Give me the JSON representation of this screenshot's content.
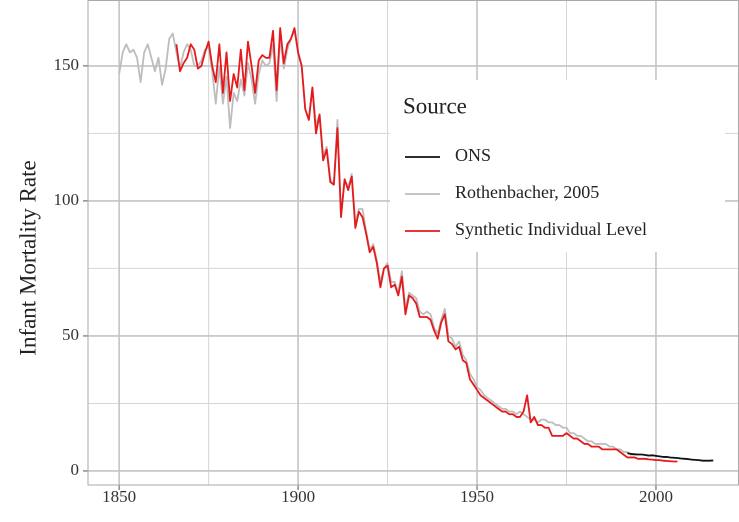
{
  "chart_data": {
    "type": "line",
    "y_label": "Infant Mortality Rate",
    "legend_title": "Source",
    "legend_position": "right",
    "grid": true,
    "xlim": [
      1841.3,
      2023.2
    ],
    "ylim": [
      -5.2,
      174.4
    ],
    "xticks": [
      1850,
      1900,
      1950,
      2000
    ],
    "yticks": [
      0,
      50,
      100,
      150
    ],
    "x_minor_ticks": [
      1875,
      1925,
      1975
    ],
    "y_minor_ticks": [
      25,
      75,
      125
    ],
    "series": [
      {
        "name": "ONS",
        "color": "#111111",
        "x": [
          1992,
          1993,
          1994,
          1995,
          1996,
          1997,
          1998,
          1999,
          2000,
          2001,
          2002,
          2003,
          2004,
          2005,
          2006,
          2007,
          2008,
          2009,
          2010,
          2011,
          2012,
          2013,
          2014,
          2015,
          2016
        ],
        "values": [
          6.6,
          6.3,
          6.2,
          6.1,
          6.1,
          5.9,
          5.7,
          5.8,
          5.6,
          5.4,
          5.2,
          5.2,
          5.0,
          4.9,
          4.8,
          4.6,
          4.5,
          4.4,
          4.2,
          4.1,
          4.0,
          3.8,
          3.8,
          3.8,
          3.9
        ]
      },
      {
        "name": "Rothenbacher, 2005",
        "color": "#bdbdbd",
        "x": [
          1850,
          1851,
          1852,
          1853,
          1854,
          1855,
          1856,
          1857,
          1858,
          1859,
          1860,
          1861,
          1862,
          1863,
          1864,
          1865,
          1866,
          1867,
          1868,
          1869,
          1870,
          1871,
          1872,
          1873,
          1874,
          1875,
          1876,
          1877,
          1878,
          1879,
          1880,
          1881,
          1882,
          1883,
          1884,
          1885,
          1886,
          1887,
          1888,
          1889,
          1890,
          1891,
          1892,
          1893,
          1894,
          1895,
          1896,
          1897,
          1898,
          1899,
          1900,
          1901,
          1902,
          1903,
          1904,
          1905,
          1906,
          1907,
          1908,
          1909,
          1910,
          1911,
          1912,
          1913,
          1914,
          1915,
          1916,
          1917,
          1918,
          1919,
          1920,
          1921,
          1922,
          1923,
          1924,
          1925,
          1926,
          1927,
          1928,
          1929,
          1930,
          1931,
          1932,
          1933,
          1934,
          1935,
          1936,
          1937,
          1938,
          1939,
          1940,
          1941,
          1942,
          1943,
          1944,
          1945,
          1946,
          1947,
          1948,
          1949,
          1950,
          1951,
          1952,
          1953,
          1954,
          1955,
          1956,
          1957,
          1958,
          1959,
          1960,
          1961,
          1962,
          1963,
          1964,
          1965,
          1966,
          1967,
          1968,
          1969,
          1970,
          1971,
          1972,
          1973,
          1974,
          1975,
          1976,
          1977,
          1978,
          1979,
          1980,
          1981,
          1982,
          1983,
          1984,
          1985,
          1986,
          1987,
          1988,
          1989,
          1990,
          1991,
          1992,
          1993,
          1994,
          1995
        ],
        "values": [
          147,
          155,
          158,
          155,
          156,
          153,
          144,
          155,
          158,
          153,
          148,
          153,
          143,
          149,
          160,
          162,
          155,
          149,
          155,
          158,
          156,
          150,
          150,
          152,
          156,
          157,
          148,
          136,
          150,
          136,
          146,
          127,
          140,
          137,
          145,
          139,
          151,
          145,
          136,
          147,
          152,
          150,
          151,
          158,
          137,
          161,
          149,
          156,
          160,
          163,
          155,
          150,
          134,
          130,
          142,
          128,
          132,
          117,
          120,
          108,
          106,
          130,
          95,
          108,
          105,
          110,
          92,
          97,
          97,
          89,
          82,
          84,
          78,
          70,
          75,
          77,
          70,
          70,
          66,
          74,
          60,
          66,
          65,
          64,
          59,
          58,
          59,
          58,
          53,
          51,
          56,
          60,
          50,
          49,
          46,
          48,
          43,
          41,
          36,
          34,
          31,
          30,
          28,
          27,
          26,
          25,
          24,
          23,
          23,
          22,
          22,
          21,
          22,
          21,
          20,
          19,
          19,
          18,
          19,
          19,
          18,
          18,
          17,
          17,
          16,
          16,
          14,
          14,
          13,
          13,
          12,
          11,
          11,
          10,
          10,
          10,
          10,
          9,
          9,
          8,
          8,
          7,
          7,
          6,
          6,
          6
        ]
      },
      {
        "name": "Synthetic Individual Level",
        "color": "#e41a1c",
        "x": [
          1866,
          1867,
          1868,
          1869,
          1870,
          1871,
          1872,
          1873,
          1874,
          1875,
          1876,
          1877,
          1878,
          1879,
          1880,
          1881,
          1882,
          1883,
          1884,
          1885,
          1886,
          1887,
          1888,
          1889,
          1890,
          1891,
          1892,
          1893,
          1894,
          1895,
          1896,
          1897,
          1898,
          1899,
          1900,
          1901,
          1902,
          1903,
          1904,
          1905,
          1906,
          1907,
          1908,
          1909,
          1910,
          1911,
          1912,
          1913,
          1914,
          1915,
          1916,
          1917,
          1918,
          1919,
          1920,
          1921,
          1922,
          1923,
          1924,
          1925,
          1926,
          1927,
          1928,
          1929,
          1930,
          1931,
          1932,
          1933,
          1934,
          1935,
          1936,
          1937,
          1938,
          1939,
          1940,
          1941,
          1942,
          1943,
          1944,
          1945,
          1946,
          1947,
          1948,
          1949,
          1950,
          1951,
          1952,
          1953,
          1954,
          1955,
          1956,
          1957,
          1958,
          1959,
          1960,
          1961,
          1962,
          1963,
          1964,
          1965,
          1966,
          1967,
          1968,
          1969,
          1970,
          1971,
          1972,
          1973,
          1974,
          1975,
          1976,
          1977,
          1978,
          1979,
          1980,
          1981,
          1982,
          1983,
          1984,
          1985,
          1986,
          1987,
          1988,
          1989,
          1990,
          1991,
          1992,
          1993,
          1994,
          1995,
          1996,
          1997,
          1998,
          1999,
          2000,
          2001,
          2002,
          2003,
          2004,
          2005,
          2006
        ],
        "values": [
          158,
          148,
          151,
          153,
          158,
          156,
          149,
          150,
          155,
          159,
          150,
          144,
          158,
          140,
          155,
          137,
          147,
          142,
          156,
          141,
          159,
          150,
          140,
          152,
          154,
          153,
          153,
          163,
          141,
          164,
          151,
          158,
          160,
          164,
          155,
          150,
          134,
          130,
          142,
          125,
          132,
          115,
          119,
          107,
          106,
          127,
          94,
          108,
          104,
          109,
          90,
          96,
          94,
          88,
          81,
          83,
          77,
          68,
          75,
          76,
          68,
          69,
          65,
          72,
          58,
          65,
          64,
          62,
          57,
          57,
          57,
          56,
          52,
          49,
          55,
          58,
          48,
          47,
          45,
          46,
          41,
          40,
          34,
          32,
          30,
          28,
          27,
          26,
          25,
          24,
          23,
          22,
          22,
          21,
          21,
          20,
          20,
          22,
          28,
          18,
          20,
          17,
          17,
          16,
          16,
          13,
          13,
          13,
          13,
          14,
          13,
          12,
          12,
          11,
          10,
          10,
          9,
          9,
          9,
          8,
          8,
          8,
          8,
          8,
          7,
          6,
          5,
          5,
          5,
          4.5,
          4.5,
          4.5,
          4.3,
          4.2,
          4,
          4,
          3.8,
          3.7,
          3.6,
          3.5,
          3.5
        ]
      }
    ]
  }
}
